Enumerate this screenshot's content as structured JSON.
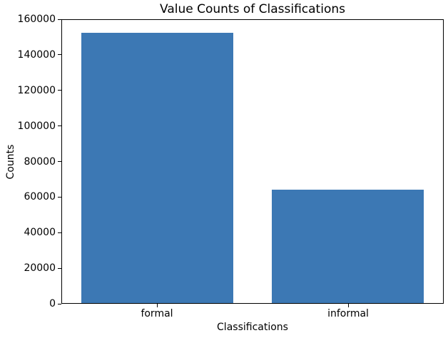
{
  "chart_data": {
    "type": "bar",
    "title": "Value Counts of Classifications",
    "xlabel": "Classifications",
    "ylabel": "Counts",
    "categories": [
      "formal",
      "informal"
    ],
    "values": [
      152800,
      64200
    ],
    "ylim": [
      0,
      160000
    ],
    "yticks": [
      0,
      20000,
      40000,
      60000,
      80000,
      100000,
      120000,
      140000,
      160000
    ],
    "bar_color": "#3c78b4",
    "bar_width_fraction": 0.8,
    "grid": false,
    "legend": "none",
    "frame": "full-box",
    "axis_color": "#000000",
    "background_color": "#ffffff"
  }
}
